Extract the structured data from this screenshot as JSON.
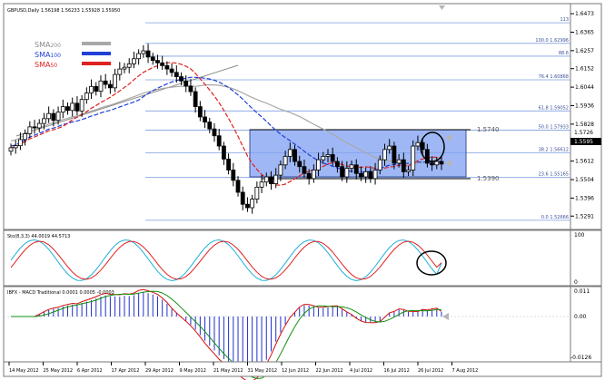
{
  "main_panel": {
    "title": "GBPUSD,Daily  1.56198 1.56233 1.55928 1.55950",
    "price_ticks": [
      "1.6473",
      "1.6365",
      "1.6257",
      "1.6152",
      "1.6044",
      "1.5936",
      "1.5828",
      "1.5720",
      "1.5612",
      "1.5504",
      "1.5396",
      "1.5291"
    ],
    "price_label_mid": "1.5726",
    "price_label_current": "1.5595",
    "fib_levels": [
      {
        "label": "113",
        "price": 1.642
      },
      {
        "label": "100.0 1.62996",
        "price": 1.62996
      },
      {
        "label": "88.6",
        "price": 1.6225
      },
      {
        "label": "76.4 1.60868",
        "price": 1.60868
      },
      {
        "label": "61.8 1.59052",
        "price": 1.59052
      },
      {
        "label": "50.0 1.57933",
        "price": 1.57933
      },
      {
        "label": "38.2 1.56612",
        "price": 1.56612
      },
      {
        "label": "23.6 1.55165",
        "price": 1.55165
      },
      {
        "label": "0.0 1.52666",
        "price": 1.52666
      }
    ],
    "range_top_label": "1.5740",
    "range_bottom_label": "1.5390",
    "legend": [
      {
        "name": "SMA",
        "sub": "200",
        "color": "#a8a8a8"
      },
      {
        "name": "SMA",
        "sub": "100",
        "color": "#1f3fd8"
      },
      {
        "name": "SMA",
        "sub": "50",
        "color": "#e02020"
      }
    ]
  },
  "stoch_panel": {
    "title": "Sto(8,3,3) 44.0019 44.5713",
    "ticks": [
      "100",
      "0"
    ]
  },
  "macd_panel": {
    "title": "IBFX - MACD Traditional 0.0001 0.0005 -0.0003",
    "ticks": [
      "0.011",
      "0.00",
      "-0.0126"
    ]
  },
  "x_axis_dates": [
    "14 May 2012",
    "25 May 2012",
    "6 Apr 2012",
    "17 Apr 2012",
    "29 Apr 2012",
    "9 May 2012",
    "21 May 2012",
    "31 May 2012",
    "12 Jun 2012",
    "22 Jun 2012",
    "4 Jul 2012",
    "16 Jul 2012",
    "26 Jul 2012",
    "7 Aug 2012"
  ],
  "colors": {
    "bull_candle": "#ffffff",
    "bear_candle": "#000000",
    "range_fill": "#7fa0f2",
    "fib_line": "#7f9fdf",
    "stoch_main": "#1fb0d8",
    "stoch_signal": "#e02020",
    "macd_hist": "#2030c8",
    "macd_line": "#d01010",
    "signal_line": "#109010"
  },
  "chart_data": {
    "type": "candlestick",
    "symbol": "GBPUSD",
    "timeframe": "Daily",
    "open": 1.56198,
    "high": 1.56233,
    "low": 1.55928,
    "close": 1.5595,
    "ylim": [
      1.525,
      1.65
    ],
    "close_series": [
      1.569,
      1.5702,
      1.5738,
      1.5772,
      1.5812,
      1.5806,
      1.5832,
      1.586,
      1.589,
      1.585,
      1.5898,
      1.593,
      1.5908,
      1.595,
      1.5905,
      1.5972,
      1.601,
      1.6048,
      1.602,
      1.608,
      1.606,
      1.604,
      1.6118,
      1.615,
      1.616,
      1.618,
      1.621,
      1.624,
      1.6256,
      1.622,
      1.62,
      1.6186,
      1.617,
      1.615,
      1.613,
      1.6105,
      1.608,
      1.605,
      1.6018,
      1.593,
      1.587,
      1.584,
      1.58,
      1.576,
      1.57,
      1.5624,
      1.556,
      1.55,
      1.543,
      1.536,
      1.534,
      1.539,
      1.546,
      1.549,
      1.552,
      1.548,
      1.553,
      1.559,
      1.564,
      1.568,
      1.561,
      1.558,
      1.554,
      1.551,
      1.556,
      1.562,
      1.564,
      1.565,
      1.561,
      1.558,
      1.552,
      1.557,
      1.559,
      1.554,
      1.552,
      1.555,
      1.551,
      1.556,
      1.562,
      1.568,
      1.57,
      1.56,
      1.562,
      1.555,
      1.556,
      1.57,
      1.572,
      1.568,
      1.56,
      1.559,
      1.561,
      1.5595
    ],
    "range_box": {
      "top": 1.574,
      "bottom": 1.539
    },
    "stochastic": {
      "main": 44.0019,
      "signal": 44.5713
    },
    "macd": {
      "main": 0.0001,
      "signal": 0.0005,
      "histogram": -0.0003
    }
  }
}
